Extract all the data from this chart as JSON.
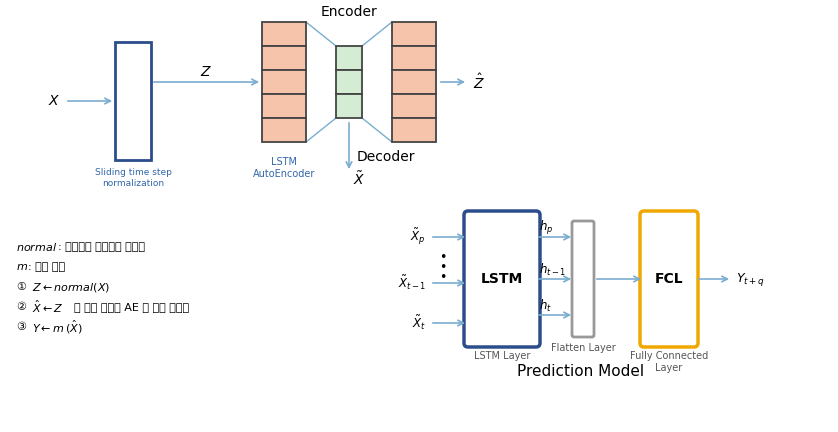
{
  "bg_color": "#ffffff",
  "arrow_color": "#7aadcf",
  "salmon_color": "#f5c4aa",
  "green_color": "#d4ecd4",
  "lstm_border_color": "#2b4d8c",
  "fcl_border_color": "#f0a800",
  "flatten_border_color": "#999999",
  "sliding_border_color": "#2b4d8c",
  "encoder_label": "Encoder",
  "decoder_label": "Decoder",
  "lstm_ae_label": "LSTM\nAutoEncoder",
  "prediction_model_label": "Prediction Model",
  "sliding_label": "Sliding time step\nnormalization",
  "lstm_layer_label": "LSTM Layer",
  "flatten_layer_label": "Flatten Layer",
  "fcl_layer_label": "Fully Connected\nLayer"
}
